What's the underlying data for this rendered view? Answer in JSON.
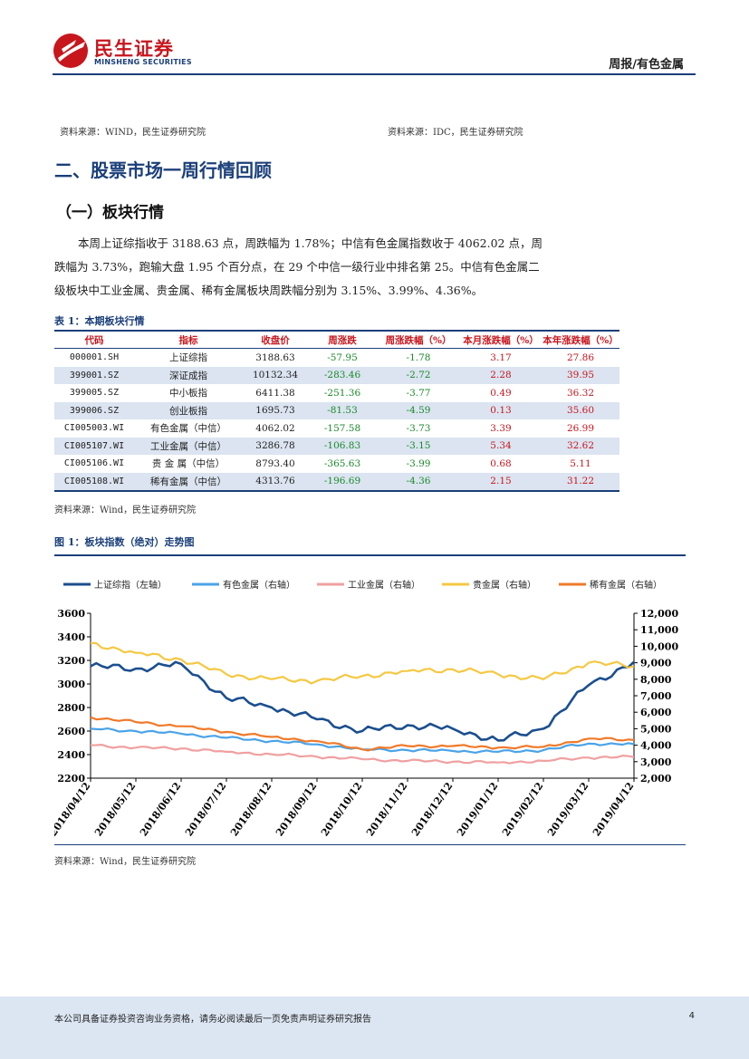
{
  "header": {
    "logo_cn": "民生证券",
    "logo_en": "MINSHENG SECURITIES",
    "report_type": "周报/有色金属"
  },
  "sources_top": {
    "left": "资料来源：WIND，民生证券研究院",
    "right": "资料来源：IDC，民生证券研究院"
  },
  "section_title": "二、股票市场一周行情回顾",
  "subsection_title": "（一）板块行情",
  "paragraph": [
    "本周上证综指收于 3188.63 点，周跌幅为 1.78%；中信有色金属指数收于 4062.02 点，周",
    "跌幅为 3.73%，跑输大盘 1.95 个百分点，在 29 个中信一级行业中排名第 25。中信有色金属二",
    "级板块中工业金属、贵金属、稀有金属板块周跌幅分别为 3.15%、3.99%、4.36%。"
  ],
  "table": {
    "caption": "表 1：本期板块行情",
    "headers": [
      "代码",
      "指标",
      "收盘价",
      "周涨跌",
      "周涨跌幅（%）",
      "本月涨跌幅（%）",
      "本年涨跌幅（%）"
    ],
    "rows": [
      [
        "000001.SH",
        "上证综指",
        "3188.63",
        "-57.95",
        "-1.78",
        "3.17",
        "27.86"
      ],
      [
        "399001.SZ",
        "深证成指",
        "10132.34",
        "-283.46",
        "-2.72",
        "2.28",
        "39.95"
      ],
      [
        "399005.SZ",
        "中小板指",
        "6411.38",
        "-251.36",
        "-3.77",
        "0.49",
        "36.32"
      ],
      [
        "399006.SZ",
        "创业板指",
        "1695.73",
        "-81.53",
        "-4.59",
        "0.13",
        "35.60"
      ],
      [
        "CI005003.WI",
        "有色金属（中信）",
        "4062.02",
        "-157.58",
        "-3.73",
        "3.39",
        "26.99"
      ],
      [
        "CI005107.WI",
        "工业金属（中信）",
        "3286.78",
        "-106.83",
        "-3.15",
        "5.34",
        "32.62"
      ],
      [
        "CI005106.WI",
        "贵 金 属（中信）",
        "8793.40",
        "-365.63",
        "-3.99",
        "0.68",
        "5.11"
      ],
      [
        "CI005108.WI",
        "稀有金属（中信）",
        "4313.76",
        "-196.69",
        "-4.36",
        "2.15",
        "31.22"
      ]
    ],
    "source": "资料来源：Wind，民生证券研究院"
  },
  "figure": {
    "caption": "图 1：板块指数（绝对）走势图",
    "source": "资料来源：Wind，民生证券研究院"
  },
  "chart_data": {
    "type": "line",
    "x": [
      "2018/04/12",
      "2018/05/12",
      "2018/06/12",
      "2018/07/12",
      "2018/08/12",
      "2018/09/12",
      "2018/10/12",
      "2018/11/12",
      "2018/12/12",
      "2019/01/12",
      "2019/02/12",
      "2019/03/12",
      "2019/04/12"
    ],
    "ylim_left": [
      2200,
      3600
    ],
    "yticks_left": [
      2200,
      2400,
      2600,
      2800,
      3000,
      3200,
      3400,
      3600
    ],
    "ylim_right": [
      2000,
      12000
    ],
    "yticks_right": [
      "2,000",
      "3,000",
      "4,000",
      "5,000",
      "6,000",
      "7,000",
      "8,000",
      "9,000",
      "10,000",
      "11,000",
      "12,000"
    ],
    "series": [
      {
        "name": "上证综指（左轴）",
        "axis": "left",
        "color": "#1b4f8f",
        "values": [
          3150,
          3130,
          3170,
          2880,
          2800,
          2700,
          2600,
          2650,
          2620,
          2520,
          2620,
          2990,
          3188
        ]
      },
      {
        "name": "有色金属（右轴）",
        "axis": "right",
        "color": "#4aa3e8",
        "values": [
          5000,
          4850,
          4700,
          4450,
          4250,
          4050,
          3750,
          3700,
          3650,
          3600,
          3700,
          4100,
          4062
        ]
      },
      {
        "name": "工业金属（右轴）",
        "axis": "right",
        "color": "#f0a0a0",
        "values": [
          4000,
          3850,
          3800,
          3600,
          3450,
          3300,
          3150,
          3050,
          3000,
          2950,
          3050,
          3250,
          3287
        ]
      },
      {
        "name": "贵金属（右轴）",
        "axis": "right",
        "color": "#f5c842",
        "values": [
          10200,
          9600,
          9200,
          8300,
          8000,
          7900,
          8200,
          8500,
          8600,
          8300,
          8000,
          9000,
          8793
        ]
      },
      {
        "name": "稀有金属（右轴）",
        "axis": "right",
        "color": "#f07a2a",
        "values": [
          5700,
          5400,
          5150,
          4800,
          4500,
          4250,
          3750,
          3950,
          3950,
          3850,
          3900,
          4400,
          4314
        ]
      }
    ]
  },
  "footer": {
    "disclaimer": "本公司具备证券投资咨询业务资格，请务必阅读最后一页免责声明证券研究报告",
    "page": "4"
  }
}
